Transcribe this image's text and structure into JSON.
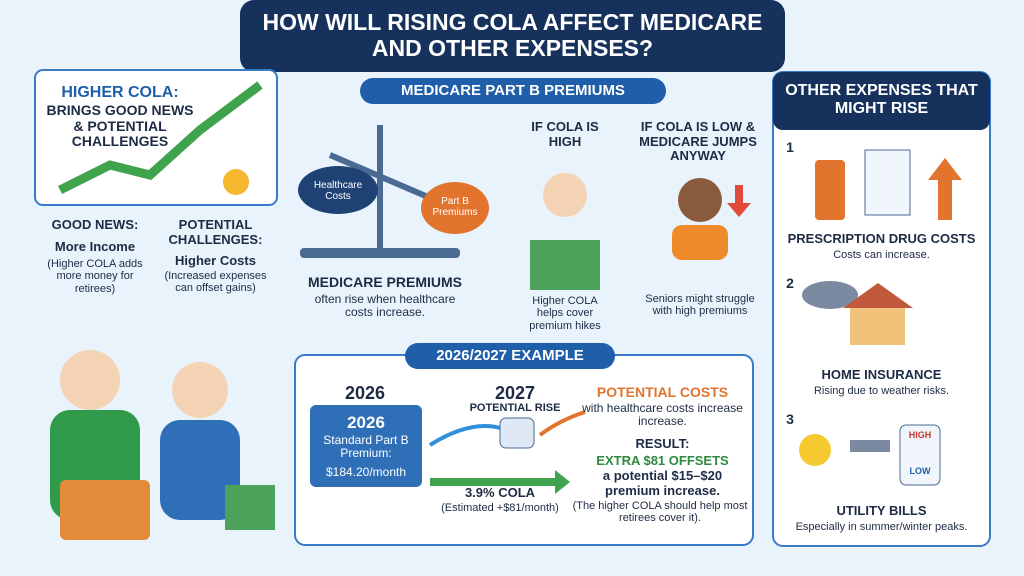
{
  "header": {
    "title": "HOW WILL RISING COLA AFFECT MEDICARE AND OTHER EXPENSES?"
  },
  "left": {
    "headline": "HIGHER COLA:",
    "subline": "BRINGS GOOD NEWS & POTENTIAL CHALLENGES",
    "good": {
      "label": "GOOD NEWS:",
      "title": "More Income",
      "note": "(Higher COLA adds more money for retirees)"
    },
    "bad": {
      "label": "POTENTIAL CHALLENGES:",
      "title": "Higher Costs",
      "note": "(Increased expenses can offset gains)"
    }
  },
  "medicare": {
    "heading": "MEDICARE PART B PREMIUMS",
    "scale_left": "Healthcare Costs",
    "scale_right": "Part B Premiums",
    "premiums_title": "MEDICARE PREMIUMS",
    "premiums_text": "often rise when healthcare costs increase.",
    "high": {
      "title": "IF COLA IS HIGH",
      "text": "Higher COLA helps cover premium hikes"
    },
    "low": {
      "title": "IF COLA IS LOW & MEDICARE JUMPS ANYWAY",
      "text": "Seniors might struggle with high premiums"
    }
  },
  "example": {
    "heading": "2026/2027 EXAMPLE",
    "year1": "2026",
    "year2": "2027",
    "rise": "POTENTIAL RISE",
    "box": {
      "year": "2026",
      "text": "Standard Part B Premium:",
      "amount": "$184.20/month"
    },
    "cola": "3.9% COLA",
    "cola_note": "(Estimated +$81/month)",
    "costs_title": "POTENTIAL COSTS",
    "costs_text": "with healthcare costs increase increase.",
    "result_label": "RESULT:",
    "result_title": "EXTRA $81 OFFSETS",
    "result_text": "a potential $15–$20 premium increase.",
    "result_note": "(The higher COLA should help most retirees cover it)."
  },
  "other": {
    "heading": "OTHER EXPENSES THAT MIGHT RISE",
    "items": [
      {
        "number": "1",
        "title": "PRESCRIPTION DRUG COSTS",
        "text": "Costs can increase."
      },
      {
        "number": "2",
        "title": "HOME INSURANCE",
        "text": "Rising due to weather risks."
      },
      {
        "number": "3",
        "title": "UTILITY BILLS",
        "text": "Especially in summer/winter peaks.",
        "high": "HIGH",
        "low": "LOW"
      }
    ]
  }
}
